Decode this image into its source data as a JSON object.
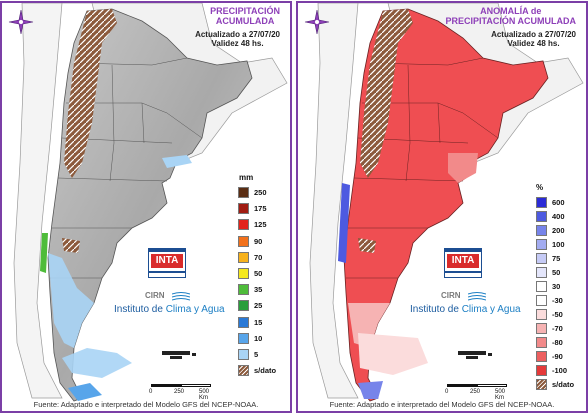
{
  "left": {
    "title_line1": "PRECIPITACIÓN",
    "title_line2": "ACUMULADA",
    "updated": "Actualizado a 27/07/20",
    "validity": "Validez 48 hs.",
    "unit": "mm",
    "legend": [
      {
        "label": "250",
        "color": "#5a2e14"
      },
      {
        "label": "175",
        "color": "#a11c12"
      },
      {
        "label": "125",
        "color": "#e3241c"
      },
      {
        "label": "90",
        "color": "#f2711c"
      },
      {
        "label": "70",
        "color": "#f7b21c"
      },
      {
        "label": "50",
        "color": "#f5e81e"
      },
      {
        "label": "35",
        "color": "#4ebc3a"
      },
      {
        "label": "25",
        "color": "#2a9e3c"
      },
      {
        "label": "15",
        "color": "#2a79d6"
      },
      {
        "label": "10",
        "color": "#58a5ea"
      },
      {
        "label": "5",
        "color": "#a9d4f5"
      },
      {
        "label": "s/dato",
        "color": "#8c5a3c"
      }
    ],
    "footer": "Fuente: Adaptado e interpretado del Modelo GFS del NCEP-NOAA."
  },
  "right": {
    "title_line1": "ANOMALÍA de",
    "title_line2": "PRECIPITACIÓN ACUMULADA",
    "updated": "Actualizado a 27/07/20",
    "validity": "Validez 48 hs.",
    "unit": "%",
    "legend": [
      {
        "label": "600",
        "color": "#2b2bd6"
      },
      {
        "label": "400",
        "color": "#4d5ae0"
      },
      {
        "label": "200",
        "color": "#7784ea"
      },
      {
        "label": "100",
        "color": "#a3acf1"
      },
      {
        "label": "75",
        "color": "#c6cbf6"
      },
      {
        "label": "50",
        "color": "#e4e6fb"
      },
      {
        "label": "30",
        "color": "#ffffff"
      },
      {
        "label": "-30",
        "color": "#ffffff"
      },
      {
        "label": "-50",
        "color": "#fbdcdc"
      },
      {
        "label": "-70",
        "color": "#f6b3b3"
      },
      {
        "label": "-80",
        "color": "#f28a8a"
      },
      {
        "label": "-90",
        "color": "#ec5f5f"
      },
      {
        "label": "-100",
        "color": "#e53a3a"
      },
      {
        "label": "s/dato",
        "color": "#8c5a3c"
      }
    ],
    "footer": "Fuente: Adaptado e interpretado del Modelo GFS del NCEP-NOAA."
  },
  "logo": {
    "inta": "INTA",
    "cirn": "CIRN",
    "institute_a": "Instituto de ",
    "institute_b": "Clima y Agua"
  },
  "scale": {
    "l0": "0",
    "l1": "250",
    "l2": "500 Km"
  },
  "colors": {
    "border": "#7b3fa6",
    "title": "#8d3fb8",
    "anomaly_red": "#ef4e52"
  },
  "icons": {
    "rose": "compass-rose-icon"
  }
}
